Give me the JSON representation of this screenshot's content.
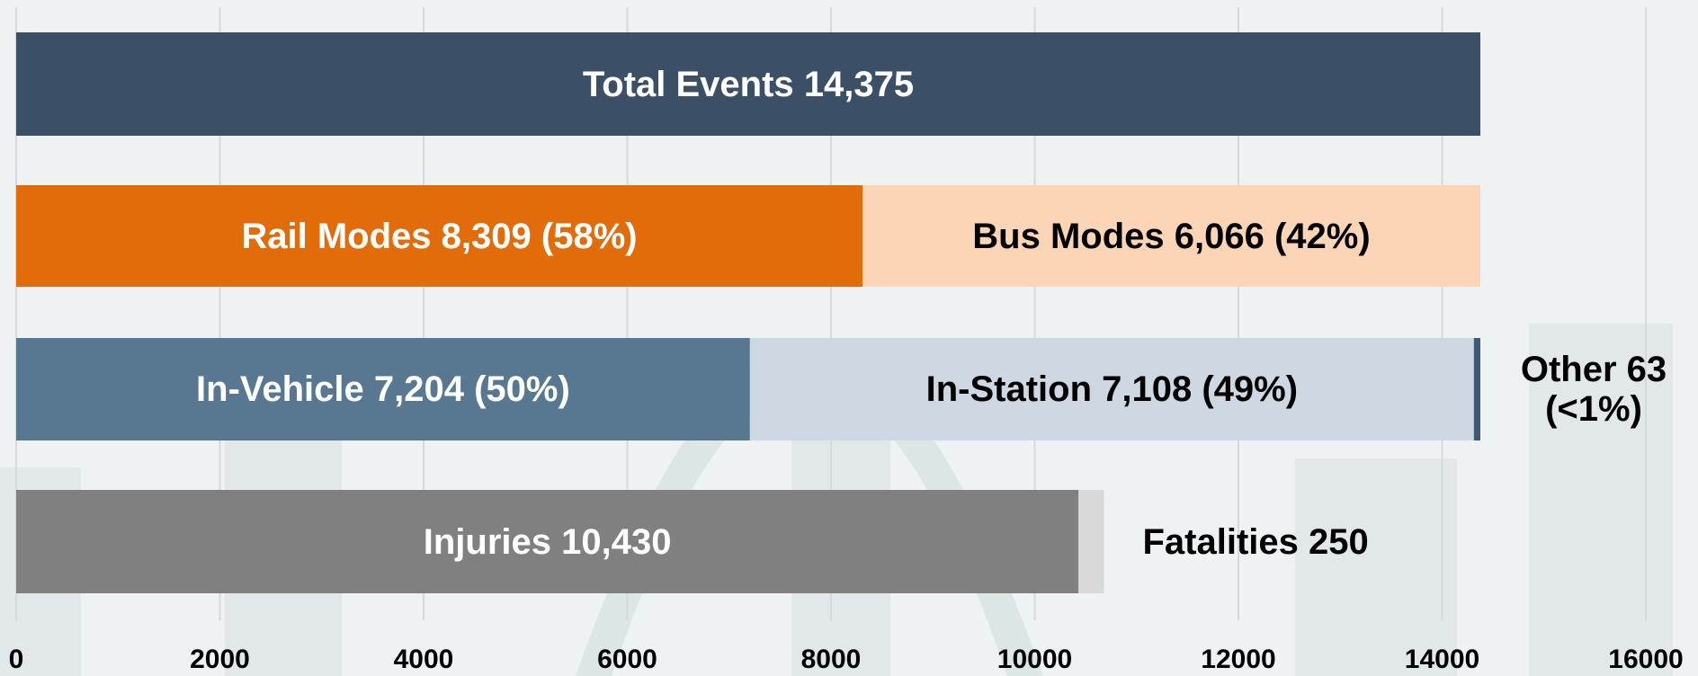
{
  "chart_data": {
    "type": "stacked-bar-horizontal",
    "categories": [
      null,
      null,
      null,
      null
    ],
    "series": [
      {
        "name": "Total Events",
        "color": "#3b4f66",
        "values": [
          14375,
          null,
          null,
          null
        ],
        "value_labels": [
          "14,375",
          null,
          null,
          null
        ]
      },
      {
        "name": "Rail Modes",
        "color": "#e36c0a",
        "values": [
          null,
          8309,
          null,
          null
        ],
        "value_labels": [
          null,
          "8,309 (58%)",
          null,
          null
        ]
      },
      {
        "name": "Bus Modes",
        "color": "#fbd5b5",
        "values": [
          null,
          6066,
          null,
          null
        ],
        "value_labels": [
          null,
          "6,066 (42%)",
          null,
          null
        ]
      },
      {
        "name": "In-Vehicle",
        "color": "#587791",
        "values": [
          null,
          null,
          7204,
          null
        ],
        "value_labels": [
          null,
          null,
          "7,204 (50%)",
          null
        ]
      },
      {
        "name": "In-Station",
        "color": "#cdd8e2",
        "values": [
          null,
          null,
          7108,
          null
        ],
        "value_labels": [
          null,
          null,
          "7,108 (49%)",
          null
        ]
      },
      {
        "name": "Other",
        "color": "#3b5a78",
        "values": [
          null,
          null,
          63,
          null
        ],
        "value_labels": [
          null,
          null,
          "63 (<1%)",
          null
        ]
      },
      {
        "name": "Injuries",
        "color": "#808080",
        "values": [
          null,
          null,
          null,
          10430
        ],
        "value_labels": [
          null,
          null,
          null,
          "10,430"
        ]
      },
      {
        "name": "Fatalities",
        "color": "#d9d9d9",
        "values": [
          null,
          null,
          null,
          250
        ],
        "value_labels": [
          null,
          null,
          null,
          "250"
        ]
      }
    ],
    "xlim": [
      0,
      16000
    ],
    "xticks": [
      0,
      2000,
      4000,
      6000,
      8000,
      10000,
      12000,
      14000,
      16000
    ],
    "grid": true
  }
}
